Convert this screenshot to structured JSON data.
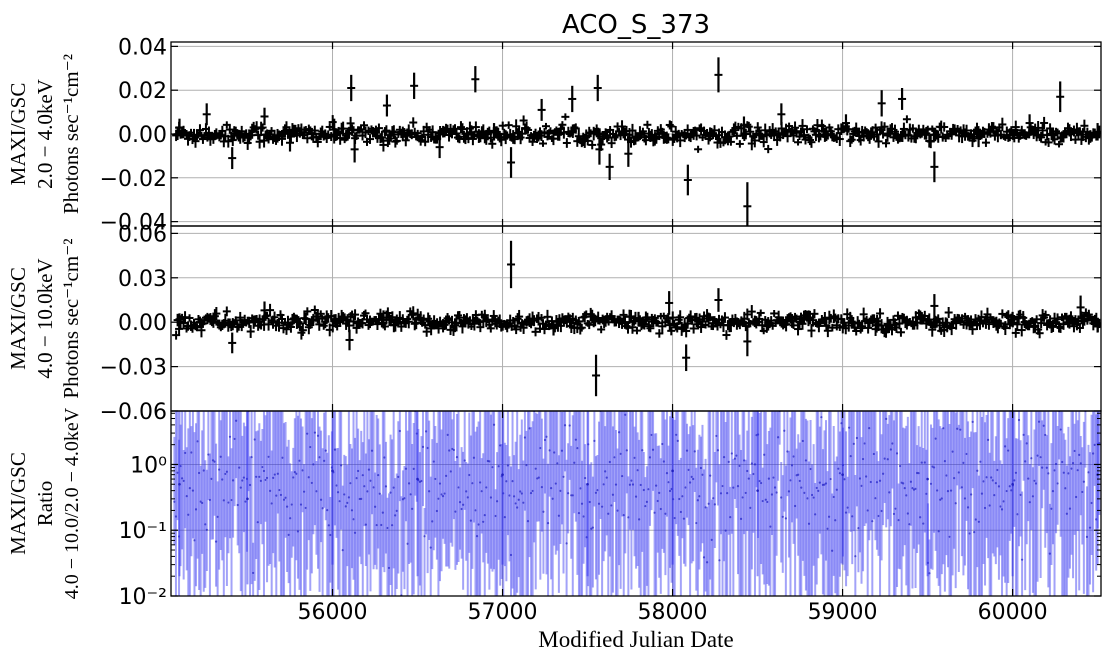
{
  "chart_data": [
    {
      "type": "line",
      "title": "ACO_S_373",
      "ylabel_lines": [
        "MAXI/GSC",
        "2.0 − 4.0keV",
        "Photons sec⁻¹cm⁻²"
      ],
      "xlim": [
        55050,
        60520
      ],
      "ylim": [
        -0.042,
        0.042
      ],
      "yticks": [
        -0.04,
        -0.02,
        0.0,
        0.02,
        0.04
      ],
      "ytick_labels": [
        "−0.04",
        "−0.02",
        "0.00",
        "0.02",
        "0.04"
      ],
      "grid": true,
      "series": [
        {
          "color": "#000000",
          "points": [
            {
              "x": 55100,
              "y": 0.003,
              "err": 0.004
            },
            {
              "x": 55260,
              "y": 0.009,
              "err": 0.005
            },
            {
              "x": 55410,
              "y": -0.011,
              "err": 0.005
            },
            {
              "x": 55600,
              "y": 0.008,
              "err": 0.004
            },
            {
              "x": 55750,
              "y": -0.004,
              "err": 0.004
            },
            {
              "x": 56010,
              "y": 0.002,
              "err": 0.005
            },
            {
              "x": 56110,
              "y": 0.021,
              "err": 0.006
            },
            {
              "x": 56130,
              "y": -0.007,
              "err": 0.006
            },
            {
              "x": 56320,
              "y": 0.013,
              "err": 0.005
            },
            {
              "x": 56480,
              "y": 0.022,
              "err": 0.006
            },
            {
              "x": 56630,
              "y": -0.006,
              "err": 0.005
            },
            {
              "x": 56840,
              "y": 0.025,
              "err": 0.006
            },
            {
              "x": 56950,
              "y": 0.001,
              "err": 0.004
            },
            {
              "x": 57050,
              "y": -0.013,
              "err": 0.007
            },
            {
              "x": 57230,
              "y": 0.011,
              "err": 0.005
            },
            {
              "x": 57410,
              "y": 0.016,
              "err": 0.006
            },
            {
              "x": 57560,
              "y": 0.021,
              "err": 0.006
            },
            {
              "x": 57570,
              "y": -0.007,
              "err": 0.007
            },
            {
              "x": 57630,
              "y": -0.015,
              "err": 0.006
            },
            {
              "x": 57740,
              "y": -0.009,
              "err": 0.006
            },
            {
              "x": 58090,
              "y": -0.021,
              "err": 0.007
            },
            {
              "x": 58270,
              "y": 0.027,
              "err": 0.008
            },
            {
              "x": 58420,
              "y": 0.004,
              "err": 0.004
            },
            {
              "x": 58440,
              "y": -0.033,
              "err": 0.011
            },
            {
              "x": 58640,
              "y": 0.009,
              "err": 0.005
            },
            {
              "x": 59020,
              "y": 0.005,
              "err": 0.004
            },
            {
              "x": 59230,
              "y": 0.014,
              "err": 0.006
            },
            {
              "x": 59350,
              "y": 0.016,
              "err": 0.005
            },
            {
              "x": 59540,
              "y": -0.015,
              "err": 0.007
            },
            {
              "x": 59800,
              "y": -0.002,
              "err": 0.004
            },
            {
              "x": 60100,
              "y": 0.005,
              "err": 0.004
            },
            {
              "x": 60280,
              "y": 0.017,
              "err": 0.007
            },
            {
              "x": 60500,
              "y": 0.001,
              "err": 0.004
            }
          ]
        }
      ]
    },
    {
      "type": "line",
      "ylabel_lines": [
        "MAXI/GSC",
        "4.0 − 10.0keV",
        "Photons sec⁻¹cm⁻²"
      ],
      "xlim": [
        55050,
        60520
      ],
      "ylim": [
        -0.06,
        0.065
      ],
      "yticks": [
        -0.06,
        -0.03,
        0.0,
        0.03,
        0.06
      ],
      "ytick_labels": [
        "−0.06",
        "−0.03",
        "0.00",
        "0.03",
        "0.06"
      ],
      "grid": true,
      "series": [
        {
          "color": "#000000",
          "points": [
            {
              "x": 55100,
              "y": 0.002,
              "err": 0.004
            },
            {
              "x": 55410,
              "y": -0.014,
              "err": 0.007
            },
            {
              "x": 55600,
              "y": 0.008,
              "err": 0.006
            },
            {
              "x": 56100,
              "y": -0.012,
              "err": 0.007
            },
            {
              "x": 56300,
              "y": 0.003,
              "err": 0.005
            },
            {
              "x": 57050,
              "y": 0.039,
              "err": 0.016
            },
            {
              "x": 57300,
              "y": -0.004,
              "err": 0.005
            },
            {
              "x": 57550,
              "y": -0.036,
              "err": 0.014
            },
            {
              "x": 57800,
              "y": 0.002,
              "err": 0.005
            },
            {
              "x": 57980,
              "y": 0.013,
              "err": 0.008
            },
            {
              "x": 58080,
              "y": -0.024,
              "err": 0.009
            },
            {
              "x": 58270,
              "y": 0.015,
              "err": 0.008
            },
            {
              "x": 58440,
              "y": -0.013,
              "err": 0.01
            },
            {
              "x": 58800,
              "y": 0.003,
              "err": 0.005
            },
            {
              "x": 59200,
              "y": -0.002,
              "err": 0.005
            },
            {
              "x": 59540,
              "y": 0.011,
              "err": 0.008
            },
            {
              "x": 60000,
              "y": 0.002,
              "err": 0.005
            },
            {
              "x": 60400,
              "y": 0.01,
              "err": 0.008
            },
            {
              "x": 60500,
              "y": -0.002,
              "err": 0.005
            }
          ]
        }
      ]
    },
    {
      "type": "line",
      "ylabel_lines": [
        "MAXI/GSC",
        "Ratio",
        "4.0 − 10.0/2.0 − 4.0keV"
      ],
      "xlabel": "Modified Julian Date",
      "xlim": [
        55050,
        60520
      ],
      "ylim": [
        0.01,
        6.5
      ],
      "yscale": "log",
      "yticks": [
        0.01,
        0.1,
        1
      ],
      "ytick_labels": [
        "10⁻²",
        "10⁻¹",
        "10⁰"
      ],
      "xticks": [
        56000,
        57000,
        58000,
        59000,
        60000
      ],
      "xtick_labels": [
        "56000",
        "57000",
        "58000",
        "59000",
        "60000"
      ],
      "grid": true,
      "series": [
        {
          "color": "#3030f0",
          "points": [
            {
              "x": 55100,
              "y": 0.5,
              "lo": 0.02,
              "hi": 6.5
            },
            {
              "x": 55500,
              "y": 0.3,
              "lo": 0.015,
              "hi": 6.5
            },
            {
              "x": 56000,
              "y": 0.8,
              "lo": 0.03,
              "hi": 6.5
            },
            {
              "x": 56500,
              "y": 0.6,
              "lo": 0.02,
              "hi": 6.5
            },
            {
              "x": 57000,
              "y": 0.7,
              "lo": 0.03,
              "hi": 6.5
            },
            {
              "x": 57500,
              "y": 0.5,
              "lo": 0.02,
              "hi": 6.5
            },
            {
              "x": 58000,
              "y": 0.8,
              "lo": 0.03,
              "hi": 6.5
            },
            {
              "x": 58500,
              "y": 0.4,
              "lo": 0.02,
              "hi": 6.5
            },
            {
              "x": 59000,
              "y": 0.7,
              "lo": 0.03,
              "hi": 6.5
            },
            {
              "x": 59500,
              "y": 0.6,
              "lo": 0.02,
              "hi": 6.5
            },
            {
              "x": 60000,
              "y": 0.5,
              "lo": 0.02,
              "hi": 6.5
            },
            {
              "x": 60500,
              "y": 0.7,
              "lo": 0.03,
              "hi": 6.5
            }
          ]
        }
      ]
    }
  ]
}
